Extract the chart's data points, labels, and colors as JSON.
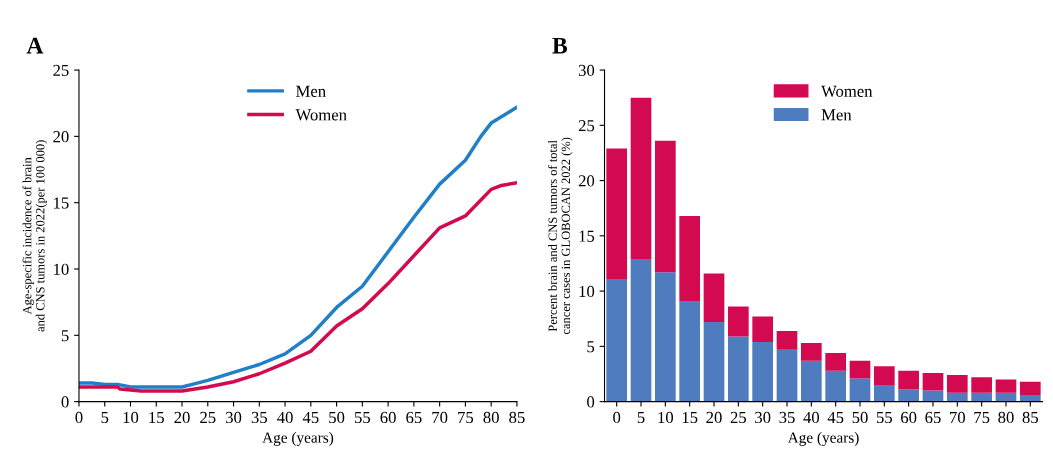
{
  "chart_data": [
    {
      "type": "line",
      "title": "A",
      "xlabel": "Age (years)",
      "ylabel": "Age-specific incidence of brain and CNS tumors in 2022(per 100 000)",
      "xlim": [
        0,
        85
      ],
      "xticks": [
        0,
        5,
        10,
        15,
        20,
        25,
        30,
        35,
        40,
        45,
        50,
        55,
        60,
        65,
        70,
        75,
        80,
        85
      ],
      "ylim": [
        0,
        25
      ],
      "yticks": [
        0,
        5,
        10,
        15,
        20,
        25
      ],
      "legend": "top",
      "grid": false,
      "series": [
        {
          "name": "Men",
          "color": "#1f7fc8",
          "x": [
            0,
            2.5,
            5,
            7.5,
            10,
            15,
            20,
            22,
            25,
            30,
            35,
            40,
            45,
            50,
            55,
            60,
            65,
            70,
            75,
            78,
            80,
            85
          ],
          "values": [
            1.4,
            1.4,
            1.3,
            1.3,
            1.1,
            1.1,
            1.1,
            1.3,
            1.6,
            2.2,
            2.8,
            3.6,
            5.0,
            7.1,
            8.7,
            11.3,
            13.9,
            16.4,
            18.2,
            20.0,
            21.0,
            22.2
          ]
        },
        {
          "name": "Women",
          "color": "#d40a50",
          "x": [
            0,
            5,
            7.5,
            8,
            12,
            20,
            25,
            30,
            35,
            40,
            45,
            50,
            55,
            60,
            65,
            70,
            75,
            80,
            82,
            85
          ],
          "values": [
            1.1,
            1.1,
            1.1,
            0.95,
            0.8,
            0.8,
            1.1,
            1.5,
            2.1,
            2.9,
            3.8,
            5.7,
            7.0,
            8.9,
            11.0,
            13.1,
            14.0,
            16.0,
            16.3,
            16.5
          ]
        }
      ]
    },
    {
      "type": "bar",
      "stacked": true,
      "title": "B",
      "xlabel": "Age (years)",
      "ylabel": "Percent brain and CNS tumors of total cancer cases in GLOBOCAN 2022 (%)",
      "categories": [
        "0",
        "5",
        "10",
        "15",
        "20",
        "25",
        "30",
        "35",
        "40",
        "45",
        "50",
        "55",
        "60",
        "65",
        "70",
        "75",
        "80",
        "85"
      ],
      "ylim": [
        0,
        30
      ],
      "yticks": [
        0,
        5,
        10,
        15,
        20,
        25,
        30
      ],
      "legend": "top",
      "grid": false,
      "series": [
        {
          "name": "Men",
          "color": "#4f7bbf",
          "values": [
            11.1,
            12.9,
            11.7,
            9.1,
            7.2,
            5.9,
            5.4,
            4.7,
            3.7,
            2.8,
            2.1,
            1.5,
            1.1,
            1.0,
            0.8,
            0.8,
            0.8,
            0.6
          ]
        },
        {
          "name": "Women",
          "color": "#d40a50",
          "values": [
            11.8,
            14.6,
            11.9,
            7.7,
            4.4,
            2.7,
            2.3,
            1.7,
            1.6,
            1.6,
            1.6,
            1.7,
            1.7,
            1.6,
            1.6,
            1.4,
            1.2,
            1.2
          ]
        }
      ]
    }
  ]
}
